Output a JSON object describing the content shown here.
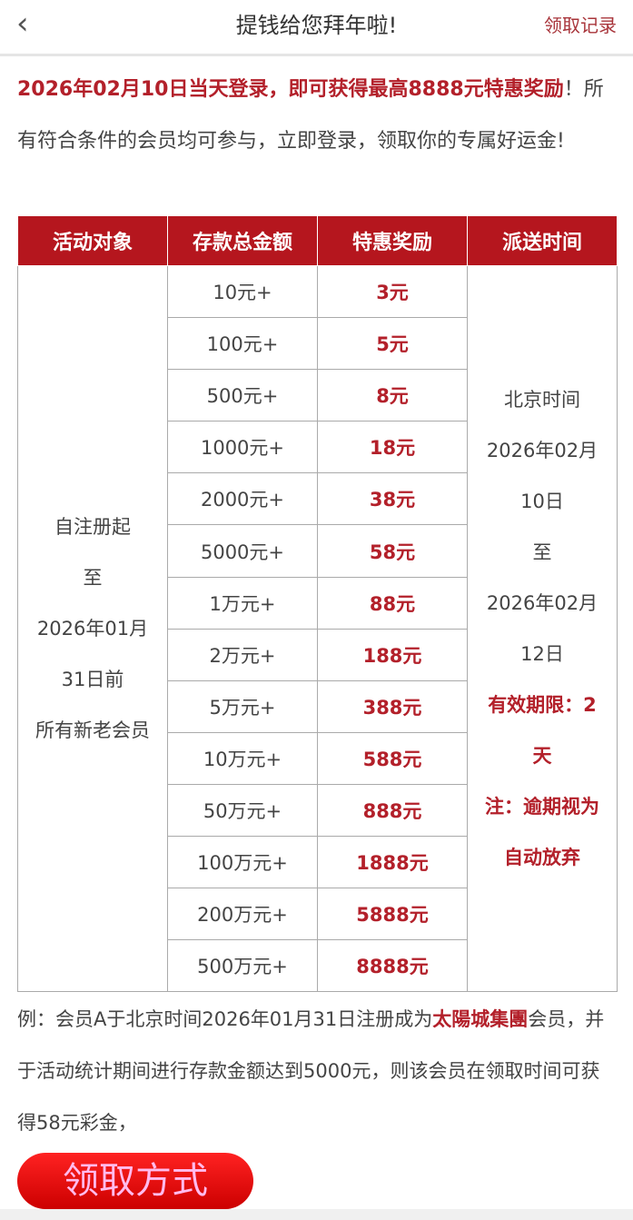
{
  "header": {
    "back_icon": "chevron-left-icon",
    "title": "提钱给您拜年啦!",
    "records_link": "领取记录"
  },
  "intro": {
    "highlight": "2026年02月10日当天登录，即可获得最高8888元特惠奖励",
    "rest": "！所有符合条件的会员均可参与，立即登录，领取你的专属好运金!"
  },
  "table": {
    "headers": [
      "活动对象",
      "存款总金额",
      "特惠奖励",
      "派送时间"
    ],
    "target": [
      "自注册起",
      "至",
      "2026年01月",
      "31日前",
      "所有新老会员"
    ],
    "rows": [
      {
        "deposit": "10元+",
        "reward": "3元"
      },
      {
        "deposit": "100元+",
        "reward": "5元"
      },
      {
        "deposit": "500元+",
        "reward": "8元"
      },
      {
        "deposit": "1000元+",
        "reward": "18元"
      },
      {
        "deposit": "2000元+",
        "reward": "38元"
      },
      {
        "deposit": "5000元+",
        "reward": "58元"
      },
      {
        "deposit": "1万元+",
        "reward": "88元"
      },
      {
        "deposit": "2万元+",
        "reward": "188元"
      },
      {
        "deposit": "5万元+",
        "reward": "388元"
      },
      {
        "deposit": "10万元+",
        "reward": "588元"
      },
      {
        "deposit": "50万元+",
        "reward": "888元"
      },
      {
        "deposit": "100万元+",
        "reward": "1888元"
      },
      {
        "deposit": "200万元+",
        "reward": "5888元"
      },
      {
        "deposit": "500万元+",
        "reward": "8888元"
      }
    ],
    "time": [
      "北京时间",
      "2026年02月",
      "10日",
      "至",
      "2026年02月",
      "12日"
    ],
    "validity": [
      "有效期限：2",
      "天",
      "注：逾期视为",
      "自动放弃"
    ]
  },
  "example": {
    "part1": "例：会员A于北京时间2026年01月31日注册成为",
    "brand": "太陽城集團",
    "part2": "会员，并于活动统计期间进行存款金额达到5000元，则该会员在领取时间可获得58元彩金，"
  },
  "cta": "领取方式",
  "colors": {
    "accent": "#b5161e",
    "text_red": "#b3202a"
  }
}
